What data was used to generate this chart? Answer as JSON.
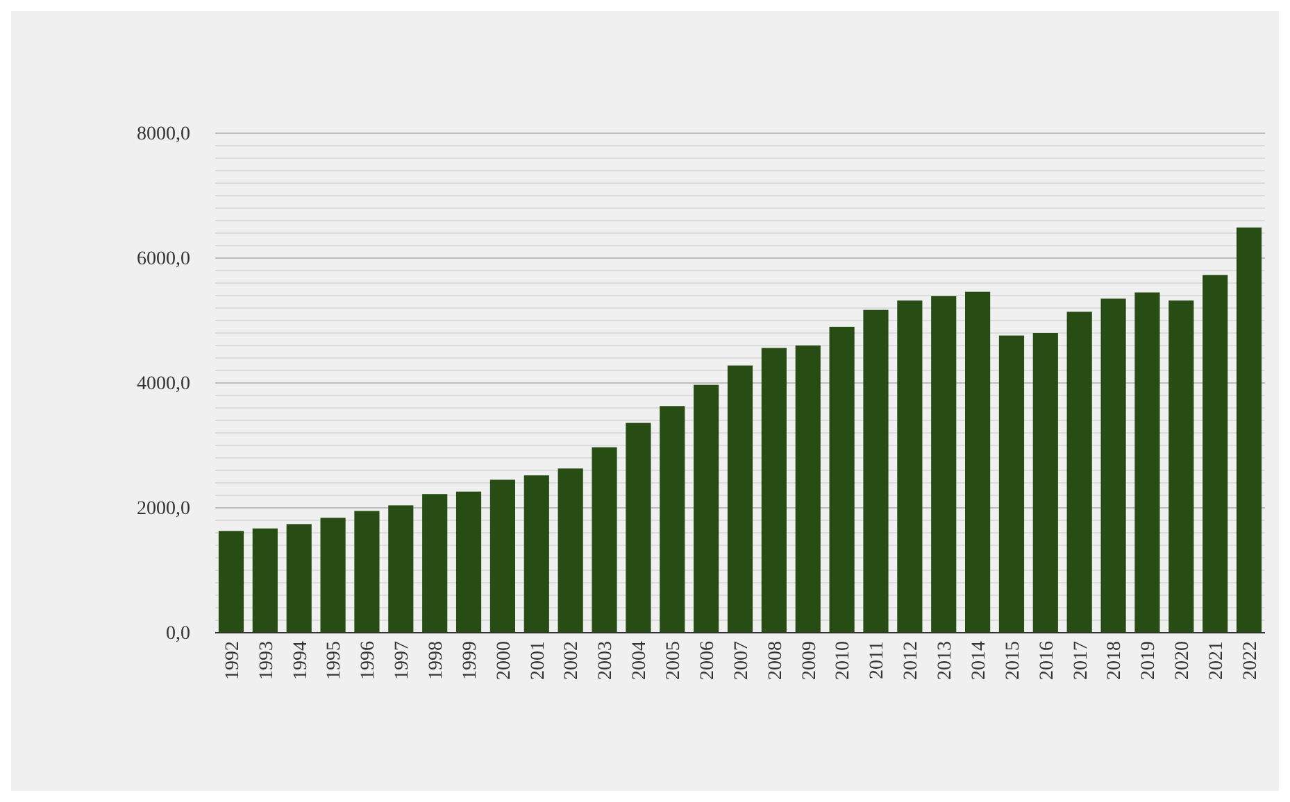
{
  "chart_data": {
    "type": "bar",
    "categories": [
      "1992",
      "1993",
      "1994",
      "1995",
      "1996",
      "1997",
      "1998",
      "1999",
      "2000",
      "2001",
      "2002",
      "2003",
      "2004",
      "2005",
      "2006",
      "2007",
      "2008",
      "2009",
      "2010",
      "2011",
      "2012",
      "2013",
      "2014",
      "2015",
      "2016",
      "2017",
      "2018",
      "2019",
      "2020",
      "2021",
      "2022"
    ],
    "values": [
      1630,
      1670,
      1740,
      1840,
      1950,
      2040,
      2220,
      2260,
      2450,
      2520,
      2630,
      2970,
      3360,
      3630,
      3970,
      4280,
      4560,
      4600,
      4900,
      5170,
      5320,
      5390,
      5460,
      4760,
      4800,
      5140,
      5350,
      5450,
      5320,
      5730,
      6490
    ],
    "color": "#274d15",
    "ylim": [
      0,
      8000
    ],
    "yticks": [
      {
        "value": 0,
        "label": "0,0"
      },
      {
        "value": 200,
        "label": null
      },
      {
        "value": 400,
        "label": null
      },
      {
        "value": 600,
        "label": null
      },
      {
        "value": 800,
        "label": null
      },
      {
        "value": 1000,
        "label": null
      },
      {
        "value": 1200,
        "label": null
      },
      {
        "value": 1400,
        "label": null
      },
      {
        "value": 1600,
        "label": null
      },
      {
        "value": 1800,
        "label": null
      },
      {
        "value": 2000,
        "label": "2000,0"
      },
      {
        "value": 2200,
        "label": null
      },
      {
        "value": 2400,
        "label": null
      },
      {
        "value": 2600,
        "label": null
      },
      {
        "value": 2800,
        "label": null
      },
      {
        "value": 3000,
        "label": null
      },
      {
        "value": 3200,
        "label": null
      },
      {
        "value": 3400,
        "label": null
      },
      {
        "value": 3600,
        "label": null
      },
      {
        "value": 3800,
        "label": null
      },
      {
        "value": 4000,
        "label": "4000,0"
      },
      {
        "value": 4200,
        "label": null
      },
      {
        "value": 4400,
        "label": null
      },
      {
        "value": 4600,
        "label": null
      },
      {
        "value": 4800,
        "label": null
      },
      {
        "value": 5000,
        "label": null
      },
      {
        "value": 5200,
        "label": null
      },
      {
        "value": 5400,
        "label": null
      },
      {
        "value": 5600,
        "label": null
      },
      {
        "value": 5800,
        "label": null
      },
      {
        "value": 6000,
        "label": "6000,0"
      },
      {
        "value": 6200,
        "label": null
      },
      {
        "value": 6400,
        "label": null
      },
      {
        "value": 6600,
        "label": null
      },
      {
        "value": 6800,
        "label": null
      },
      {
        "value": 7000,
        "label": null
      },
      {
        "value": 7200,
        "label": null
      },
      {
        "value": 7400,
        "label": null
      },
      {
        "value": 7600,
        "label": null
      },
      {
        "value": 7800,
        "label": null
      },
      {
        "value": 8000,
        "label": "8000,0"
      }
    ],
    "grid": "y"
  }
}
